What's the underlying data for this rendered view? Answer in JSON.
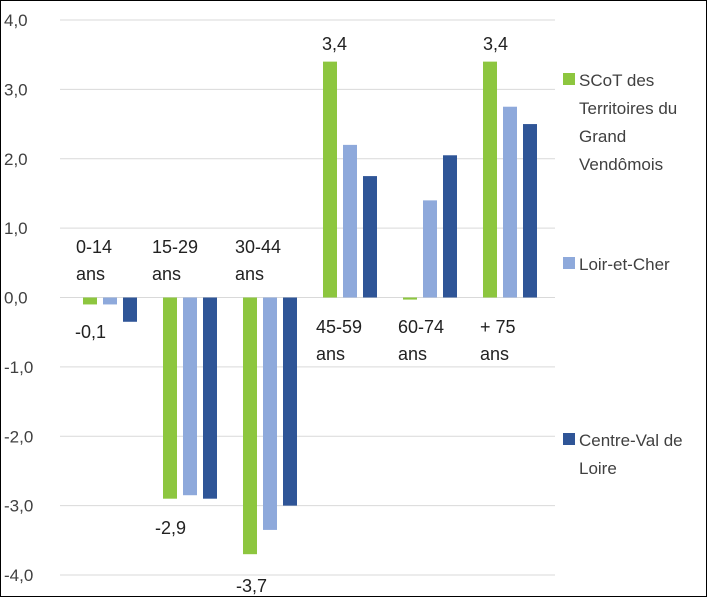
{
  "chart_data": {
    "type": "bar",
    "categories": [
      "0-14 ans",
      "15-29 ans",
      "30-44 ans",
      "45-59 ans",
      "60-74 ans",
      "+ 75 ans"
    ],
    "series": [
      {
        "name": "SCoT des Territoires du Grand Vendômois",
        "color": "#8DC63F",
        "values": [
          -0.1,
          -2.9,
          -3.7,
          3.4,
          -0.03,
          3.4
        ]
      },
      {
        "name": "Loir-et-Cher",
        "color": "#8EA9DB",
        "values": [
          -0.1,
          -2.85,
          -3.35,
          2.2,
          1.4,
          2.75
        ]
      },
      {
        "name": "Centre-Val de Loire",
        "color": "#2F5597",
        "values": [
          -0.35,
          -2.9,
          -3.0,
          1.75,
          2.05,
          2.5
        ]
      }
    ],
    "data_labels": [
      {
        "category": "0-14 ans",
        "text": "-0,1"
      },
      {
        "category": "15-29 ans",
        "text": "-2,9"
      },
      {
        "category": "30-44 ans",
        "text": "-3,7"
      },
      {
        "category": "45-59 ans",
        "text": "3,4"
      },
      {
        "category": "+ 75 ans",
        "text": "3,4"
      }
    ],
    "y_tick_labels": [
      "4,0",
      "3,0",
      "2,0",
      "1,0",
      "0,0",
      "-1,0",
      "-2,0",
      "-3,0",
      "-4,0"
    ],
    "ylim": [
      -4,
      4
    ],
    "grid": true,
    "legend_position": "right"
  }
}
